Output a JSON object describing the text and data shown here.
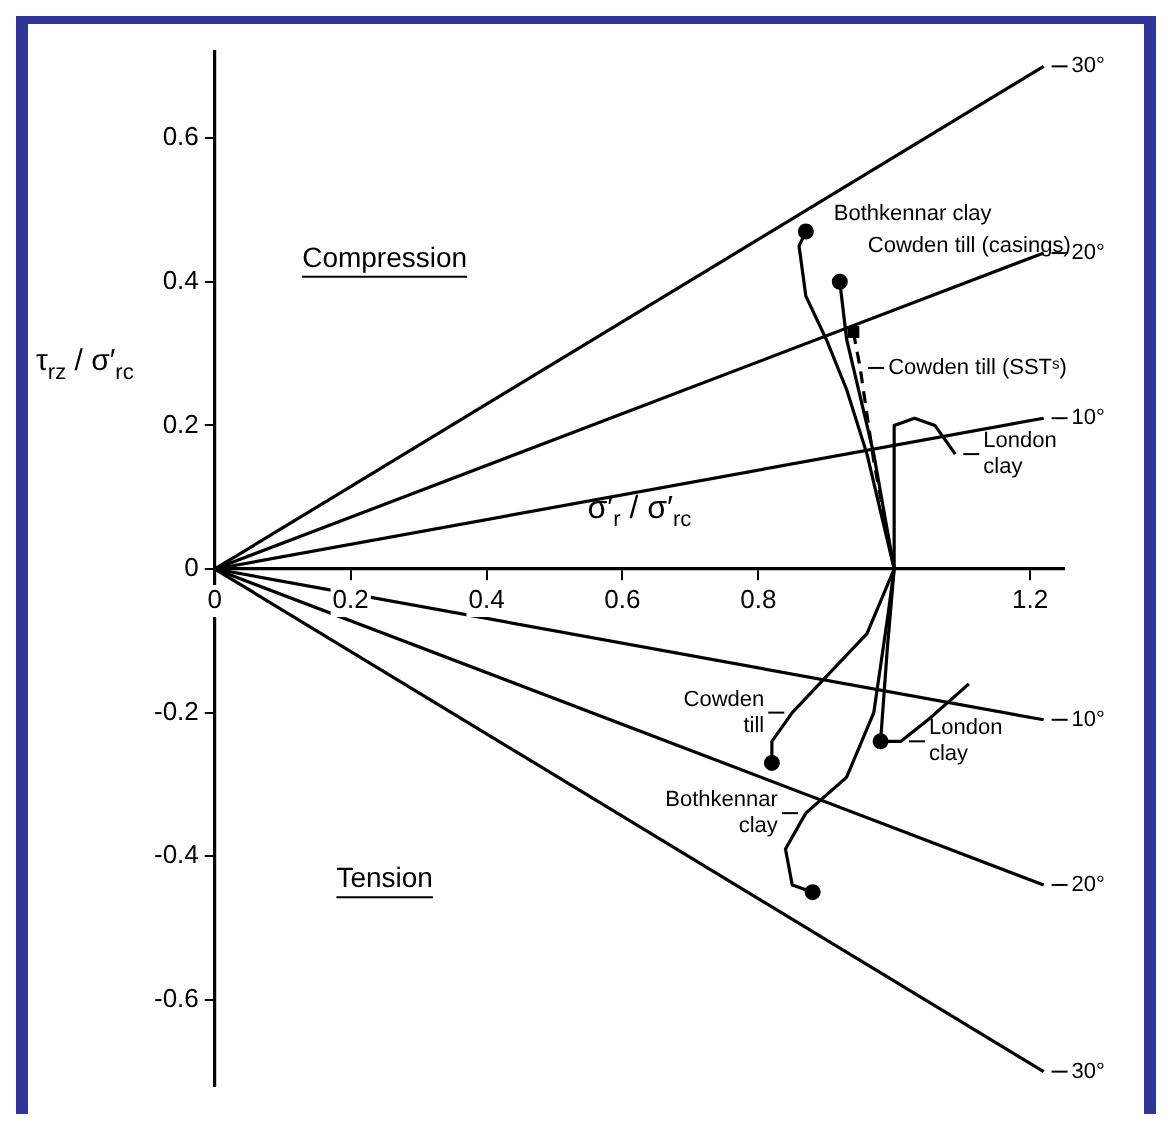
{
  "chart_data": {
    "type": "line",
    "xlabel": "σ′$_{r}$ / σ′$_{rc}$",
    "ylabel": "τ$_{rz}$ / σ′$_{rc}$",
    "xlim": [
      0,
      1.25
    ],
    "ylim": [
      -0.72,
      0.72
    ],
    "xticks": [
      0,
      0.2,
      0.4,
      0.6,
      0.8,
      1.2
    ],
    "yticks": [
      -0.6,
      -0.4,
      -0.2,
      0,
      0.2,
      0.4,
      0.6
    ],
    "marker": "none",
    "line_style": "solid",
    "series": [
      {
        "color": "#000000",
        "x": [
          0,
          1.22
        ],
        "values": [
          0,
          0.7
        ]
      },
      {
        "color": "#000000",
        "x": [
          0,
          1.22
        ],
        "values": [
          0,
          0.44
        ]
      },
      {
        "color": "#000000",
        "x": [
          0,
          1.22
        ],
        "values": [
          0,
          0.21
        ]
      },
      {
        "color": "#000000",
        "x": [
          0,
          1.22
        ],
        "values": [
          0,
          -0.21
        ]
      },
      {
        "color": "#000000",
        "x": [
          0,
          1.22
        ],
        "values": [
          0,
          -0.44
        ]
      },
      {
        "color": "#000000",
        "x": [
          0,
          1.22
        ],
        "values": [
          0,
          -0.7
        ]
      },
      {
        "color": "#000000",
        "x": [
          0.87,
          0.86,
          0.87,
          0.9,
          0.93,
          0.96,
          0.98,
          1.0,
          0.99,
          0.97,
          0.93,
          0.87,
          0.84,
          0.85,
          0.88
        ],
        "values": [
          0.47,
          0.45,
          0.38,
          0.32,
          0.25,
          0.16,
          0.08,
          0,
          -0.07,
          -0.2,
          -0.29,
          -0.34,
          -0.39,
          -0.44,
          -0.45
        ]
      },
      {
        "color": "#000000",
        "x": [
          0.92,
          0.93,
          0.97,
          1.0,
          0.96,
          0.9,
          0.85,
          0.82,
          0.82
        ],
        "values": [
          0.4,
          0.32,
          0.16,
          0,
          -0.09,
          -0.15,
          -0.2,
          -0.24,
          -0.27
        ]
      },
      {
        "color": "#000000",
        "line_style": "dashed",
        "x": [
          0.94,
          0.95,
          0.97,
          1.0
        ],
        "values": [
          0.33,
          0.28,
          0.15,
          0
        ]
      },
      {
        "color": "#000000",
        "x": [
          1.09,
          1.06,
          1.03,
          1.0,
          1.0,
          0.99,
          0.98,
          1.01,
          1.05,
          1.11
        ],
        "values": [
          0.16,
          0.2,
          0.21,
          0.2,
          0,
          -0.11,
          -0.24,
          -0.24,
          -0.21,
          -0.16
        ]
      },
      {
        "type": "scatter",
        "color": "#000000",
        "marker": "circle",
        "x": [
          0.87,
          0.92,
          0.82,
          0.88,
          0.98
        ],
        "values": [
          0.47,
          0.4,
          -0.27,
          -0.45,
          -0.24
        ]
      },
      {
        "type": "scatter",
        "color": "#000000",
        "marker": "square",
        "x": [
          0.94
        ],
        "values": [
          0.33
        ]
      }
    ],
    "annotations": [
      "Compression",
      "Tension",
      {
        "text": "Bothkennar clay",
        "x": 0.87,
        "y": 0.47
      },
      {
        "text": "Cowden till (casings)",
        "x": 0.92,
        "y": 0.4
      },
      {
        "text": "Cowden till (SSTˢ)",
        "x": 0.95,
        "y": 0.28
      },
      {
        "text": "London\nclay",
        "x": 1.09,
        "y": 0.16
      },
      {
        "text": "Cowden\ntill",
        "x": 0.85,
        "y": -0.2
      },
      {
        "text": "Bothkennar\nclay",
        "x": 0.87,
        "y": -0.34
      },
      {
        "text": "London\nclay",
        "x": 1.01,
        "y": -0.24
      },
      {
        "text": "30°",
        "x": 1.22,
        "y": 0.7
      },
      {
        "text": "20°",
        "x": 1.22,
        "y": 0.44
      },
      {
        "text": "10°",
        "x": 1.22,
        "y": 0.21
      },
      {
        "text": "10°",
        "x": 1.22,
        "y": -0.21
      },
      {
        "text": "20°",
        "x": 1.22,
        "y": -0.44
      },
      {
        "text": "30°",
        "x": 1.22,
        "y": -0.7
      }
    ]
  }
}
